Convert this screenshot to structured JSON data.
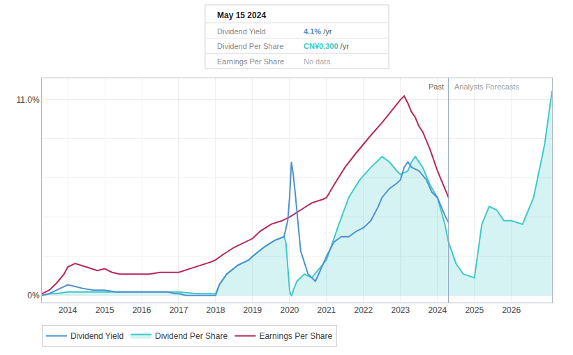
{
  "chart_data": {
    "type": "line",
    "series": [
      {
        "name": "Dividend Yield",
        "color": "#4e90d0",
        "x": [
          2013.3,
          2013.5,
          2013.7,
          2013.9,
          2014.0,
          2014.2,
          2014.4,
          2014.7,
          2015.0,
          2015.3,
          2015.6,
          2015.9,
          2016.2,
          2016.5,
          2016.7,
          2016.9,
          2017.0,
          2017.2,
          2017.5,
          2017.8,
          2018.0,
          2018.1,
          2018.3,
          2018.6,
          2018.9,
          2019.0,
          2019.3,
          2019.6,
          2019.85,
          2019.95,
          2020.0,
          2020.05,
          2020.1,
          2020.15,
          2020.3,
          2020.5,
          2020.7,
          2021.0,
          2021.2,
          2021.4,
          2021.6,
          2021.8,
          2022.0,
          2022.2,
          2022.4,
          2022.5,
          2022.7,
          2022.9,
          2023.0,
          2023.1,
          2023.2,
          2023.3,
          2023.5,
          2023.7,
          2023.85,
          2024.0,
          2024.2,
          2024.3
        ],
        "values": [
          0.0,
          0.001,
          0.003,
          0.005,
          0.006,
          0.005,
          0.004,
          0.003,
          0.003,
          0.002,
          0.002,
          0.002,
          0.002,
          0.002,
          0.002,
          0.001,
          0.001,
          0.0,
          0.0,
          0.0,
          0.0,
          0.006,
          0.012,
          0.017,
          0.02,
          0.022,
          0.027,
          0.031,
          0.033,
          0.042,
          0.055,
          0.075,
          0.068,
          0.058,
          0.025,
          0.012,
          0.008,
          0.022,
          0.03,
          0.033,
          0.033,
          0.036,
          0.038,
          0.042,
          0.05,
          0.055,
          0.06,
          0.063,
          0.065,
          0.072,
          0.075,
          0.072,
          0.07,
          0.065,
          0.058,
          0.055,
          0.045,
          0.041
        ]
      },
      {
        "name": "Dividend Per Share",
        "color": "#3ec9c9",
        "type": "area",
        "x": [
          2013.3,
          2013.5,
          2013.7,
          2014.0,
          2014.5,
          2015.0,
          2015.5,
          2016.0,
          2016.5,
          2017.0,
          2017.5,
          2018.0,
          2018.1,
          2018.3,
          2018.6,
          2018.9,
          2019.0,
          2019.3,
          2019.6,
          2019.85,
          2019.9,
          2019.95,
          2020.0,
          2020.02,
          2020.05,
          2020.08,
          2020.1,
          2020.2,
          2020.4,
          2020.6,
          2021.0,
          2021.3,
          2021.6,
          2021.9,
          2022.2,
          2022.5,
          2022.7,
          2022.9,
          2023.0,
          2023.2,
          2023.3,
          2023.4,
          2023.6,
          2023.8,
          2024.0,
          2024.2,
          2024.3,
          2024.5,
          2024.7,
          2025.0,
          2025.2,
          2025.4,
          2025.6,
          2025.8,
          2026.0,
          2026.3,
          2026.6,
          2026.9,
          2027.1
        ],
        "values": [
          0.0,
          0.001,
          0.001,
          0.002,
          0.002,
          0.002,
          0.002,
          0.002,
          0.002,
          0.002,
          0.001,
          0.001,
          0.006,
          0.012,
          0.017,
          0.02,
          0.022,
          0.027,
          0.031,
          0.033,
          0.03,
          0.015,
          0.003,
          0.001,
          0.0,
          0.001,
          0.003,
          0.008,
          0.012,
          0.01,
          0.02,
          0.038,
          0.055,
          0.065,
          0.072,
          0.078,
          0.075,
          0.07,
          0.068,
          0.07,
          0.075,
          0.078,
          0.072,
          0.062,
          0.055,
          0.04,
          0.03,
          0.018,
          0.012,
          0.01,
          0.04,
          0.05,
          0.048,
          0.042,
          0.042,
          0.04,
          0.055,
          0.085,
          0.115
        ]
      },
      {
        "name": "Earnings Per Share",
        "color": "#b5265e",
        "x": [
          2013.3,
          2013.5,
          2013.7,
          2013.9,
          2014.0,
          2014.2,
          2014.5,
          2014.8,
          2015.0,
          2015.2,
          2015.4,
          2015.6,
          2015.9,
          2016.2,
          2016.5,
          2016.8,
          2017.0,
          2017.3,
          2017.6,
          2017.9,
          2018.0,
          2018.2,
          2018.5,
          2018.8,
          2019.0,
          2019.2,
          2019.5,
          2019.8,
          2020.0,
          2020.3,
          2020.6,
          2020.9,
          2021.0,
          2021.2,
          2021.5,
          2021.8,
          2022.0,
          2022.2,
          2022.5,
          2022.8,
          2023.0,
          2023.1,
          2023.2,
          2023.3,
          2023.4,
          2023.5,
          2023.6,
          2023.8,
          2024.0,
          2024.2,
          2024.3
        ],
        "values": [
          0.001,
          0.003,
          0.007,
          0.012,
          0.016,
          0.018,
          0.016,
          0.014,
          0.015,
          0.013,
          0.012,
          0.012,
          0.012,
          0.012,
          0.013,
          0.013,
          0.013,
          0.015,
          0.017,
          0.019,
          0.02,
          0.023,
          0.027,
          0.03,
          0.032,
          0.036,
          0.04,
          0.042,
          0.044,
          0.048,
          0.052,
          0.054,
          0.055,
          0.062,
          0.072,
          0.08,
          0.085,
          0.09,
          0.097,
          0.105,
          0.11,
          0.112,
          0.108,
          0.103,
          0.1,
          0.095,
          0.092,
          0.082,
          0.07,
          0.06,
          0.055
        ]
      }
    ],
    "xlim": [
      2013.3,
      2027.1
    ],
    "ylim": [
      -0.004,
      0.122
    ],
    "xticks": [
      2014,
      2015,
      2016,
      2017,
      2018,
      2019,
      2020,
      2021,
      2022,
      2023,
      2024,
      2025,
      2026
    ],
    "yticks": [
      {
        "value": 0,
        "label": "0%"
      },
      {
        "value": 0.022,
        "label": null
      },
      {
        "value": 0.044,
        "label": null
      },
      {
        "value": 0.066,
        "label": null
      },
      {
        "value": 0.088,
        "label": null
      },
      {
        "value": 0.11,
        "label": "11.0%"
      }
    ],
    "grid": true,
    "legend": "lower left",
    "divider_x": 2024.3,
    "annotations": [
      {
        "text": "Past",
        "side": "left"
      },
      {
        "text": "Analysts Forecasts",
        "side": "right"
      }
    ],
    "tooltip": {
      "title": "May 15 2024",
      "rows": [
        {
          "label": "Dividend Yield",
          "value": "4.1%",
          "unit": "/yr"
        },
        {
          "label": "Dividend Per Share",
          "value": "CN¥0.300",
          "unit": "/yr"
        },
        {
          "label": "Earnings Per Share",
          "value": "No data"
        }
      ]
    }
  }
}
